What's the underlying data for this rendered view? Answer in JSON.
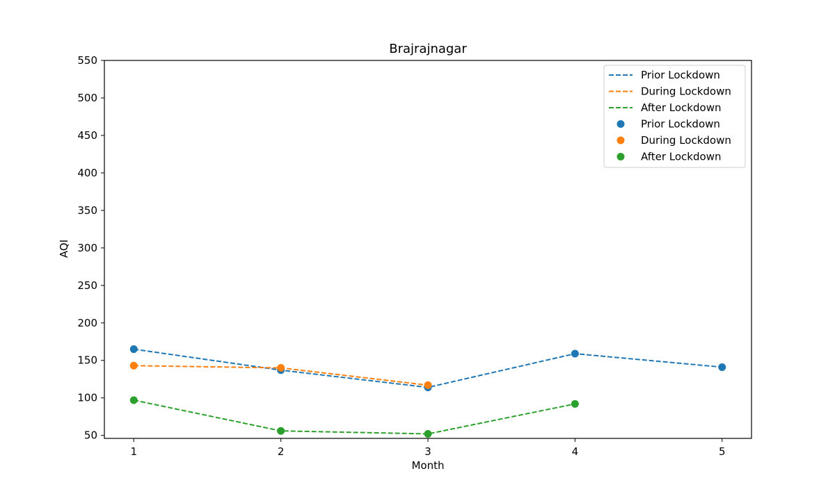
{
  "chart_data": {
    "type": "line",
    "title": "Brajrajnagar",
    "xlabel": "Month",
    "ylabel": "AQI",
    "xlim": [
      0.8,
      5.2
    ],
    "ylim": [
      46,
      550
    ],
    "xticks": [
      1,
      2,
      3,
      4,
      5
    ],
    "yticks": [
      50,
      100,
      150,
      200,
      250,
      300,
      350,
      400,
      450,
      500,
      550
    ],
    "grid": false,
    "legend_position": "top-right",
    "legend": [
      {
        "label": "Prior Lockdown",
        "kind": "line",
        "color": "#1f77b4"
      },
      {
        "label": "During Lockdown",
        "kind": "line",
        "color": "#ff7f0e"
      },
      {
        "label": "After Lockdown",
        "kind": "line",
        "color": "#2ca02c"
      },
      {
        "label": "Prior Lockdown",
        "kind": "marker",
        "color": "#1f77b4"
      },
      {
        "label": "During Lockdown",
        "kind": "marker",
        "color": "#ff7f0e"
      },
      {
        "label": "After Lockdown",
        "kind": "marker",
        "color": "#2ca02c"
      }
    ],
    "series": [
      {
        "name": "Prior Lockdown",
        "color": "#1f77b4",
        "x": [
          1,
          2,
          3,
          4,
          5
        ],
        "y": [
          165,
          137,
          114,
          159,
          141
        ]
      },
      {
        "name": "During Lockdown",
        "color": "#ff7f0e",
        "x": [
          1,
          2,
          3
        ],
        "y": [
          143,
          140,
          117
        ]
      },
      {
        "name": "After Lockdown",
        "color": "#2ca02c",
        "x": [
          1,
          2,
          3,
          4
        ],
        "y": [
          97,
          56,
          52,
          92
        ]
      }
    ]
  }
}
